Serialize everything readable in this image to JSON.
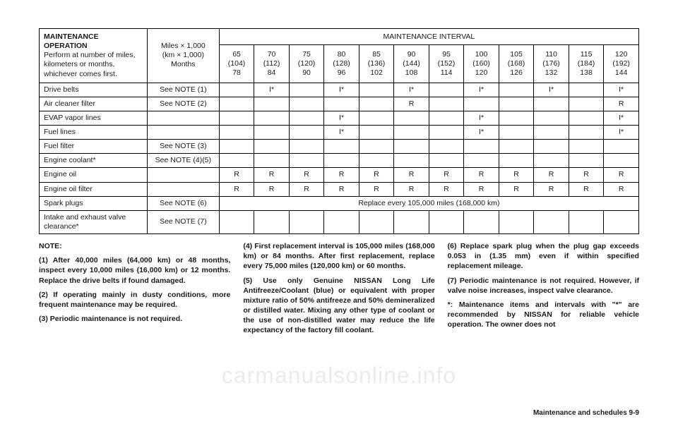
{
  "table": {
    "header_left_bold": "MAINTENANCE OPERATION",
    "header_left_rest": "Perform at number of miles, kilometers or months, whichever comes first.",
    "unit_top": "Miles × 1,000",
    "unit_mid": "(km × 1,000)",
    "unit_bot": "Months",
    "interval_title": "MAINTENANCE INTERVAL",
    "intervals": [
      {
        "miles": "65",
        "km": "(104)",
        "months": "78"
      },
      {
        "miles": "70",
        "km": "(112)",
        "months": "84"
      },
      {
        "miles": "75",
        "km": "(120)",
        "months": "90"
      },
      {
        "miles": "80",
        "km": "(128)",
        "months": "96"
      },
      {
        "miles": "85",
        "km": "(136)",
        "months": "102"
      },
      {
        "miles": "90",
        "km": "(144)",
        "months": "108"
      },
      {
        "miles": "95",
        "km": "(152)",
        "months": "114"
      },
      {
        "miles": "100",
        "km": "(160)",
        "months": "120"
      },
      {
        "miles": "105",
        "km": "(168)",
        "months": "126"
      },
      {
        "miles": "110",
        "km": "(176)",
        "months": "132"
      },
      {
        "miles": "115",
        "km": "(184)",
        "months": "138"
      },
      {
        "miles": "120",
        "km": "(192)",
        "months": "144"
      }
    ],
    "rows": [
      {
        "label": "Drive belts",
        "note": "See NOTE (1)",
        "cells": [
          "",
          "I*",
          "",
          "I*",
          "",
          "I*",
          "",
          "I*",
          "",
          "I*",
          "",
          "I*"
        ]
      },
      {
        "label": "Air cleaner filter",
        "note": "See NOTE (2)",
        "cells": [
          "",
          "",
          "",
          "",
          "",
          "R",
          "",
          "",
          "",
          "",
          "",
          "R"
        ]
      },
      {
        "label": "EVAP vapor lines",
        "note": "",
        "cells": [
          "",
          "",
          "",
          "I*",
          "",
          "",
          "",
          "I*",
          "",
          "",
          "",
          "I*"
        ]
      },
      {
        "label": "Fuel lines",
        "note": "",
        "cells": [
          "",
          "",
          "",
          "I*",
          "",
          "",
          "",
          "I*",
          "",
          "",
          "",
          "I*"
        ]
      },
      {
        "label": "Fuel filter",
        "note": "See NOTE (3)",
        "cells": [
          "",
          "",
          "",
          "",
          "",
          "",
          "",
          "",
          "",
          "",
          "",
          ""
        ]
      },
      {
        "label": "Engine coolant*",
        "note": "See NOTE (4)(5)",
        "cells": [
          "",
          "",
          "",
          "",
          "",
          "",
          "",
          "",
          "",
          "",
          "",
          ""
        ]
      },
      {
        "label": "Engine oil",
        "note": "",
        "cells": [
          "R",
          "R",
          "R",
          "R",
          "R",
          "R",
          "R",
          "R",
          "R",
          "R",
          "R",
          "R"
        ]
      },
      {
        "label": "Engine oil filter",
        "note": "",
        "cells": [
          "R",
          "R",
          "R",
          "R",
          "R",
          "R",
          "R",
          "R",
          "R",
          "R",
          "R",
          "R"
        ]
      }
    ],
    "spark_label": "Spark plugs",
    "spark_note": "See NOTE (6)",
    "spark_span": "Replace every 105,000 miles (168,000 km)",
    "intake_label": "Intake and exhaust valve clearance*",
    "intake_note": "See NOTE (7)"
  },
  "notes": {
    "title": "NOTE:",
    "p": [
      "(1) After 40,000 miles (64,000 km) or 48 months, inspect every 10,000 miles (16,000 km) or 12 months. Replace the drive belts if found damaged.",
      "(2) If operating mainly in dusty conditions, more frequent maintenance may be required.",
      "(3) Periodic maintenance is not required.",
      "(4) First replacement interval is 105,000 miles (168,000 km) or 84 months. After first replacement, replace every 75,000 miles (120,000 km) or 60 months.",
      "(5) Use only Genuine NISSAN Long Life Antifreeze/Coolant (blue) or equivalent with proper mixture ratio of 50% antifreeze and 50% demineralized or distilled water. Mixing any other type of coolant or the use of non-distilled water may reduce the life expectancy of the factory fill coolant.",
      "(6) Replace spark plug when the plug gap exceeds 0.053 in (1.35 mm) even if within specified replacement mileage.",
      "(7) Periodic maintenance is not required. However, if valve noise increases, inspect valve clearance.",
      "*: Maintenance items and intervals with \"*\" are recommended by NISSAN for reliable vehicle operation. The owner does not"
    ]
  },
  "footer": "Maintenance and schedules   9-9",
  "watermark": "carmanualsonline.info",
  "colwidths": {
    "label": "18%",
    "note": "12%",
    "interval": "5.83%"
  }
}
